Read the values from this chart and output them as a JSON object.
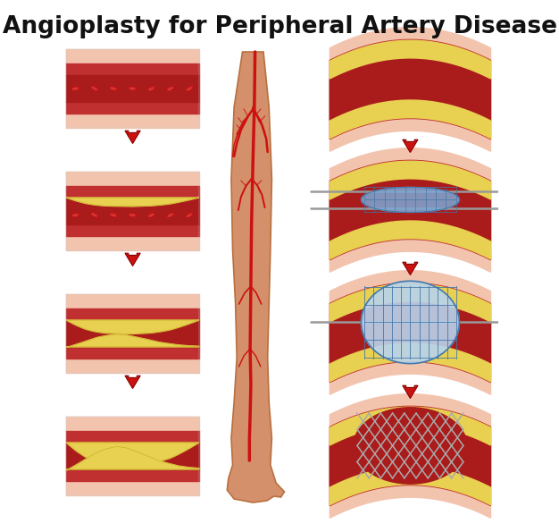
{
  "title": "Angioplasty for Peripheral Artery Disease",
  "title_fontsize": 19,
  "title_fontweight": "bold",
  "bg_color": "#ffffff",
  "arrow_color": "#cc1111",
  "outer_wall_color": "#f2c4ae",
  "outer_wall_dark": "#e8a888",
  "inner_wall_color": "#c03030",
  "inner_wall_dark": "#8b1a1a",
  "blood_color": "#aa1c1c",
  "blood_dark": "#881111",
  "rbc_color": "#cc2020",
  "rbc_light": "#e04040",
  "rbc_dark": "#991010",
  "plaque_color": "#e8d050",
  "plaque_light": "#f5e878",
  "plaque_dark": "#c4aa20",
  "stent_color": "#707070",
  "stent_light": "#aaaaaa",
  "balloon_fill": "#7ba8d4",
  "balloon_light": "#b8d4ee",
  "balloon_dark": "#4477aa",
  "wire_color": "#999999",
  "leg_fill": "#d4906a",
  "leg_edge": "#b87040",
  "vessel_color": "#cc1111",
  "vessel_dark": "#991111"
}
